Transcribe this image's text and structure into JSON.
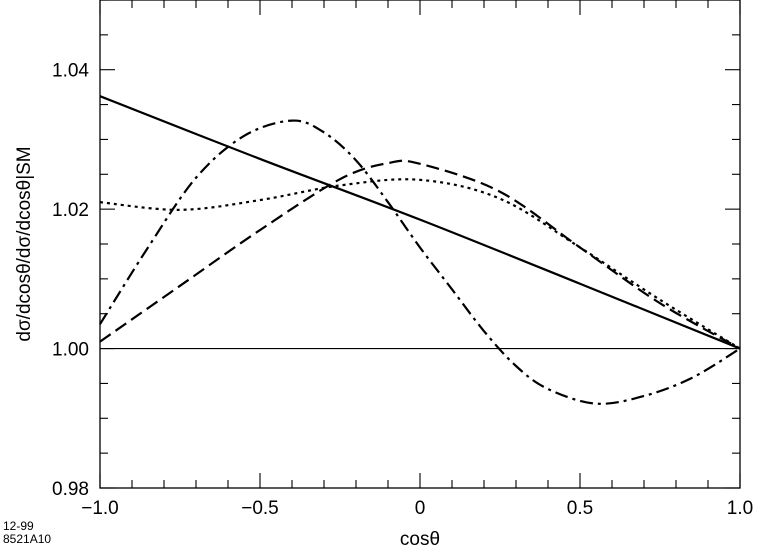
{
  "chart_data": {
    "type": "line",
    "xlabel": "cosθ",
    "ylabel": "dσ/dcosθ/dσ/dcosθ|SM",
    "xlim": [
      -1.0,
      1.0
    ],
    "ylim": [
      0.98,
      1.05
    ],
    "x_ticks": [
      "−1.0",
      "−0.5",
      "0",
      "0.5",
      "1.0"
    ],
    "x_tick_values": [
      -1.0,
      -0.5,
      0,
      0.5,
      1.0
    ],
    "y_ticks": [
      "0.98",
      "1.00",
      "1.02",
      "1.04"
    ],
    "y_tick_values": [
      0.98,
      1.0,
      1.02,
      1.04
    ],
    "reference_line": 1.0,
    "series": [
      {
        "style": "solid",
        "x": [
          -1.0,
          -0.5,
          0.0,
          0.5,
          1.0
        ],
        "y": [
          1.0362,
          1.0272,
          1.0185,
          1.0093,
          1.0
        ]
      },
      {
        "style": "dashed",
        "x": [
          -1.0,
          -0.75,
          -0.5,
          -0.25,
          -0.1,
          0.0,
          0.25,
          0.5,
          0.75,
          1.0
        ],
        "y": [
          1.001,
          1.009,
          1.017,
          1.0243,
          1.0266,
          1.0265,
          1.0225,
          1.0145,
          1.0065,
          1.0
        ]
      },
      {
        "style": "dotted",
        "x": [
          -1.0,
          -0.75,
          -0.5,
          -0.25,
          0.0,
          0.25,
          0.5,
          0.75,
          1.0
        ],
        "y": [
          1.021,
          1.0199,
          1.0213,
          1.0234,
          1.0242,
          1.0215,
          1.0145,
          1.007,
          1.0
        ]
      },
      {
        "style": "dashdot",
        "x": [
          -1.0,
          -0.85,
          -0.7,
          -0.55,
          -0.4,
          -0.3,
          -0.2,
          -0.1,
          0.0,
          0.1,
          0.2,
          0.3,
          0.4,
          0.55,
          0.7,
          0.85,
          1.0
        ],
        "y": [
          1.0035,
          1.0145,
          1.0245,
          1.0305,
          1.0327,
          1.031,
          1.027,
          1.021,
          1.0145,
          1.0085,
          1.0025,
          0.9975,
          0.9942,
          0.9921,
          0.9932,
          0.9958,
          1.0
        ]
      }
    ]
  },
  "footer": {
    "date": "12-99",
    "figure_id": "8521A10"
  }
}
